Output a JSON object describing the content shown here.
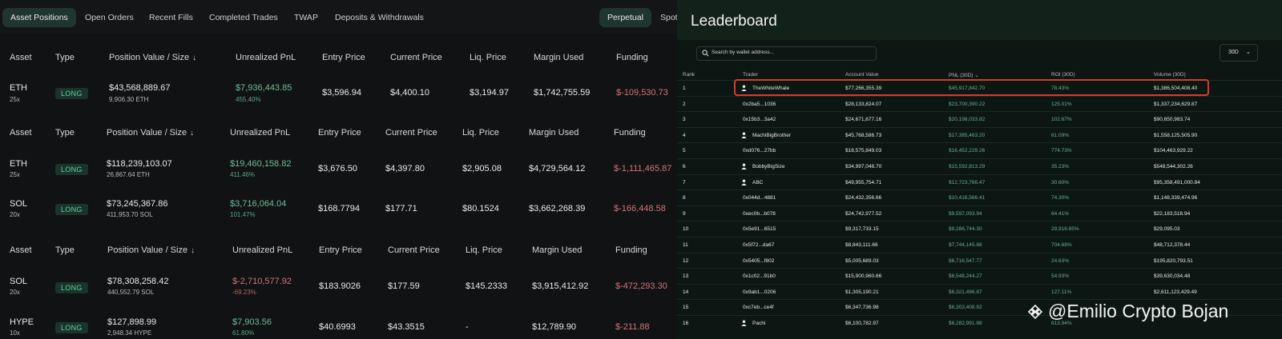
{
  "tabs": [
    {
      "label": "Asset Positions",
      "active": true
    },
    {
      "label": "Open Orders"
    },
    {
      "label": "Recent Fills"
    },
    {
      "label": "Completed Trades"
    },
    {
      "label": "TWAP"
    },
    {
      "label": "Deposits & Withdrawals"
    },
    {
      "label": "Perpetual",
      "active": true
    },
    {
      "label": "Spot"
    }
  ],
  "positions_header": {
    "asset": "Asset",
    "type": "Type",
    "position_value": "Position Value / Size",
    "unrealized_pnl": "Unrealized PnL",
    "entry_price": "Entry Price",
    "current_price": "Current Price",
    "liq_price": "Liq. Price",
    "margin_used": "Margin Used",
    "funding": "Funding"
  },
  "positions": [
    {
      "asset": "ETH",
      "leverage": "25x",
      "type": "LONG",
      "value": "$43,568,889.67",
      "size": "9,906.30 ETH",
      "pnl": "$7,936,443.85",
      "pnl_pct": "455.40%",
      "entry": "$3,596.94",
      "current": "$4,400.10",
      "liq": "$3,194.97",
      "margin": "$1,742,755.59",
      "funding": "$-109,530.73"
    },
    {
      "asset": "ETH",
      "leverage": "25x",
      "type": "LONG",
      "value": "$118,239,103.07",
      "size": "26,867.64 ETH",
      "pnl": "$19,460,158.82",
      "pnl_pct": "411.46%",
      "entry": "$3,676.50",
      "current": "$4,397.80",
      "liq": "$2,905.08",
      "margin": "$4,729,564.12",
      "funding": "$-1,111,465.87"
    },
    {
      "asset": "SOL",
      "leverage": "20x",
      "type": "LONG",
      "value": "$73,245,367.86",
      "size": "411,953.70 SOL",
      "pnl": "$3,716,064.04",
      "pnl_pct": "101.47%",
      "entry": "$168.7794",
      "current": "$177.71",
      "liq": "$80.1524",
      "margin": "$3,662,268.39",
      "funding": "$-166,448.58"
    },
    {
      "asset": "SOL",
      "leverage": "20x",
      "type": "LONG",
      "value": "$78,308,258.42",
      "size": "440,552.79 SOL",
      "pnl": "$-2,710,577.92",
      "pnl_pct": "-69.23%",
      "entry": "$183.9026",
      "current": "$177.59",
      "liq": "$145.2333",
      "margin": "$3,915,412.92",
      "funding": "$-472,293.30"
    },
    {
      "asset": "HYPE",
      "leverage": "10x",
      "type": "LONG",
      "value": "$127,898.99",
      "size": "2,948.34 HYPE",
      "pnl": "$7,903.56",
      "pnl_pct": "61.80%",
      "entry": "$40.6993",
      "current": "$43.3515",
      "liq": "-",
      "margin": "$12,789.90",
      "funding": "$-211.88"
    }
  ],
  "leaderboard": {
    "title": "Leaderboard",
    "search_placeholder": "Search by wallet address...",
    "period": "30D",
    "headers": {
      "rank": "Rank",
      "trader": "Trader",
      "account_value": "Account Value",
      "pnl": "PNL (30D)",
      "roi": "ROI (30D)",
      "volume": "Volume (30D)"
    },
    "rows": [
      {
        "rank": "1",
        "trader": "TheWhiteWhale",
        "named": true,
        "account": "$77,266,355.39",
        "pnl": "$45,917,842.70",
        "roi": "78.43%",
        "volume": "$1,386,504,408.40"
      },
      {
        "rank": "2",
        "trader": "0x2ba5...1036",
        "named": false,
        "account": "$28,133,824.07",
        "pnl": "$23,700,390.22",
        "roi": "125.01%",
        "volume": "$1,337,234,629.87"
      },
      {
        "rank": "3",
        "trader": "0x15b3...3a42",
        "named": false,
        "account": "$24,671,677.16",
        "pnl": "$20,198,033.82",
        "roi": "102.67%",
        "volume": "$90,650,983.74"
      },
      {
        "rank": "4",
        "trader": "MachiBigBrother",
        "named": true,
        "account": "$45,768,586.73",
        "pnl": "$17,385,463.20",
        "roi": "61.09%",
        "volume": "$1,558,125,505.90"
      },
      {
        "rank": "5",
        "trader": "0xd076...27bb",
        "named": false,
        "account": "$18,575,849.03",
        "pnl": "$16,452,229.26",
        "roi": "774.73%",
        "volume": "$104,463,929.22"
      },
      {
        "rank": "6",
        "trader": "BobbyBigSize",
        "named": true,
        "account": "$34,997,048.70",
        "pnl": "$15,592,813.29",
        "roi": "35.23%",
        "volume": "$548,544,302.26"
      },
      {
        "rank": "7",
        "trader": "ABC",
        "named": true,
        "account": "$49,955,754.71",
        "pnl": "$12,723,766.47",
        "roi": "30.60%",
        "volume": "$95,358,491,000.84"
      },
      {
        "rank": "8",
        "trader": "0x044d...4881",
        "named": false,
        "account": "$24,432,356.66",
        "pnl": "$10,416,566.41",
        "roi": "74.30%",
        "volume": "$1,148,339,474.96"
      },
      {
        "rank": "9",
        "trader": "0xec0b...b078",
        "named": false,
        "account": "$24,742,977.52",
        "pnl": "$9,597,093.94",
        "roi": "64.41%",
        "volume": "$22,183,516.94"
      },
      {
        "rank": "10",
        "trader": "0x5e91...6515",
        "named": false,
        "account": "$9,317,733.15",
        "pnl": "$9,286,744.30",
        "roi": "29,916.85%",
        "volume": "$29,095.03"
      },
      {
        "rank": "11",
        "trader": "0x5f72...da67",
        "named": false,
        "account": "$8,843,111.66",
        "pnl": "$7,744,145.86",
        "roi": "704.68%",
        "volume": "$48,712,378.44"
      },
      {
        "rank": "12",
        "trader": "0x5405...f802",
        "named": false,
        "account": "$5,005,689.03",
        "pnl": "$6,716,547.77",
        "roi": "24.63%",
        "volume": "$195,820,793.51"
      },
      {
        "rank": "13",
        "trader": "0x1c02...91b0",
        "named": false,
        "account": "$15,900,960.66",
        "pnl": "$6,548,244.27",
        "roi": "54.93%",
        "volume": "$39,630,034.48"
      },
      {
        "rank": "14",
        "trader": "0x9ab1...0206",
        "named": false,
        "account": "$1,305,190.21",
        "pnl": "$6,321,496.87",
        "roi": "127.11%",
        "volume": "$2,611,123,429.49"
      },
      {
        "rank": "15",
        "trader": "0xc7eb...ce4f",
        "named": false,
        "account": "$6,347,736.98",
        "pnl": "$6,303,408.92",
        "roi": "",
        "volume": ""
      },
      {
        "rank": "16",
        "trader": "Pachi",
        "named": true,
        "account": "$6,100,782.97",
        "pnl": "$6,282,991.98",
        "roi": "813.94%",
        "volume": ""
      }
    ]
  },
  "watermark": "@Emilio Crypto Bojan",
  "icons": {
    "search": "search-icon",
    "person": "person-icon",
    "sort": "arrow-down-icon",
    "chevron": "chevron-down-icon",
    "logo": "binance-logo"
  },
  "colors": {
    "positive": "#6dbd9a",
    "negative": "#d2747c",
    "highlight": "#d63a2c",
    "accent": "#203530"
  }
}
